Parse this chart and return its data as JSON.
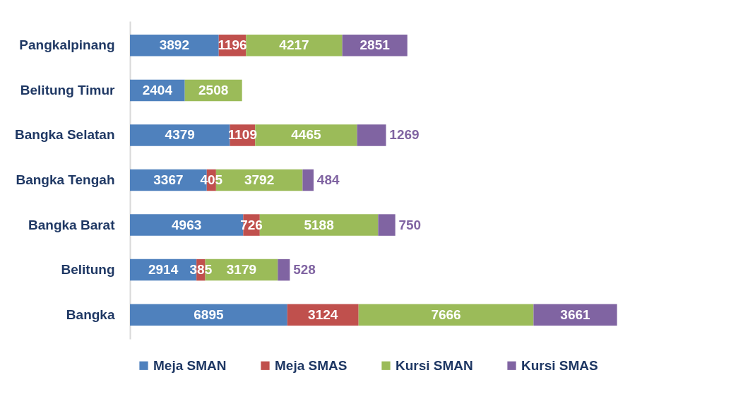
{
  "chart_data": {
    "type": "bar",
    "orientation": "horizontal",
    "stacked": true,
    "data_labels": true,
    "legend": "bottom",
    "grid": false,
    "tick_labels": "y",
    "categories": [
      "Pangkalpinang",
      "Belitung Timur",
      "Bangka Selatan",
      "Bangka Tengah",
      "Bangka Barat",
      "Belitung",
      "Bangka"
    ],
    "series": [
      {
        "name": "Meja SMAN",
        "color": "#4f81bd",
        "values": [
          3892,
          2404,
          4379,
          3367,
          4963,
          2914,
          6895
        ]
      },
      {
        "name": "Meja SMAS",
        "color": "#c0504d",
        "values": [
          1196,
          null,
          1109,
          405,
          726,
          385,
          3124
        ]
      },
      {
        "name": "Kursi SMAN",
        "color": "#9bbb59",
        "values": [
          4217,
          2508,
          4465,
          3792,
          5188,
          3179,
          7666
        ]
      },
      {
        "name": "Kursi SMAS",
        "color": "#8064a2",
        "values": [
          2851,
          null,
          1269,
          484,
          750,
          528,
          3661
        ]
      }
    ]
  }
}
